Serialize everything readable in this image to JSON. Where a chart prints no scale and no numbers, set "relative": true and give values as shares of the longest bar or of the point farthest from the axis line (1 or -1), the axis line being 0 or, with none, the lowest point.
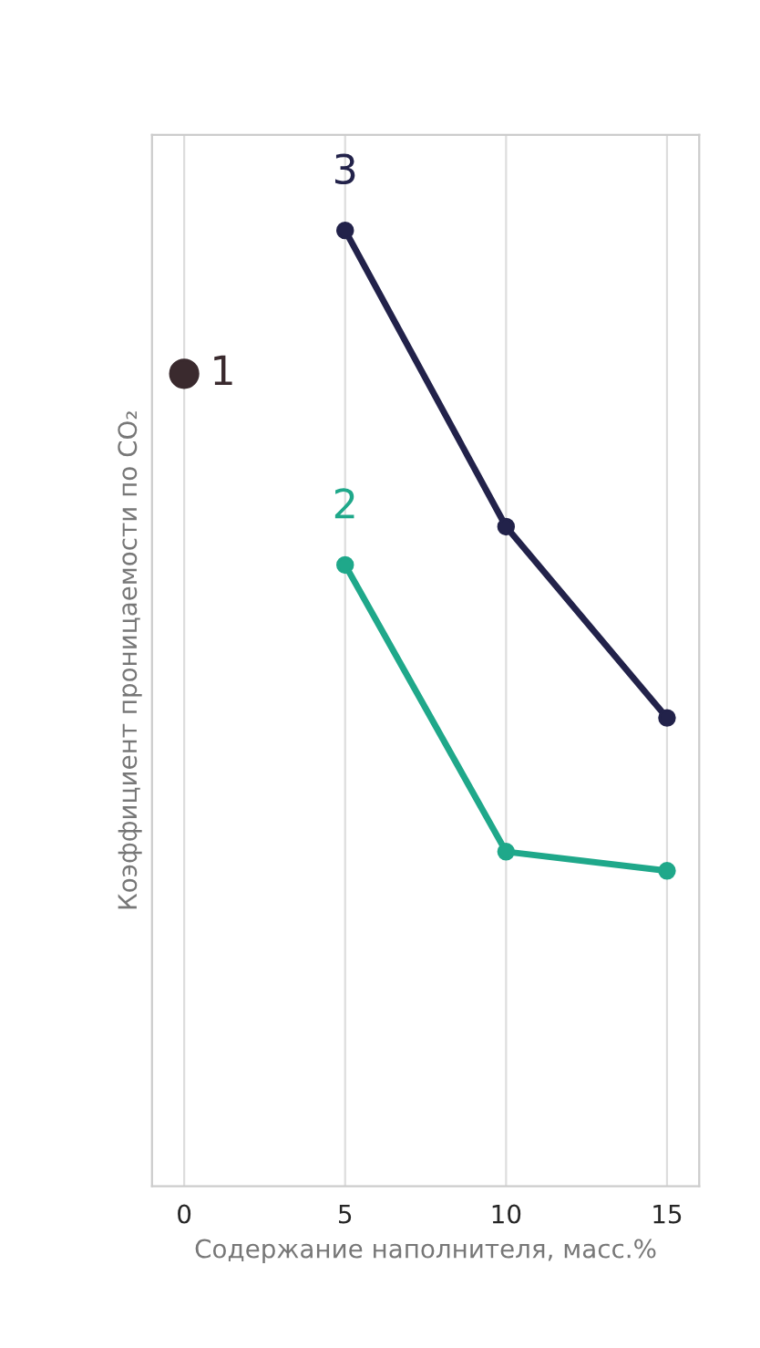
{
  "chart_data": {
    "type": "line",
    "relative": true,
    "ylabel": "Коэффициент проницаемости по CO₂",
    "xlabel": "Содержание наполнителя, масс.%",
    "xlim": [
      -1,
      16
    ],
    "xticks": [
      0,
      5,
      10,
      15
    ],
    "grid": "x",
    "marker": "circle",
    "line_style": "solid",
    "series": [
      {
        "name": "1",
        "type": "scatter",
        "color": "#3a2a2e",
        "x": [
          0
        ],
        "values": [
          0.85
        ]
      },
      {
        "name": "2",
        "color": "#1fa88a",
        "x": [
          5,
          10,
          15
        ],
        "values": [
          0.65,
          0.35,
          0.33
        ]
      },
      {
        "name": "3",
        "color": "#22224a",
        "x": [
          5,
          10,
          15
        ],
        "values": [
          1,
          0.69,
          0.49
        ]
      }
    ]
  }
}
